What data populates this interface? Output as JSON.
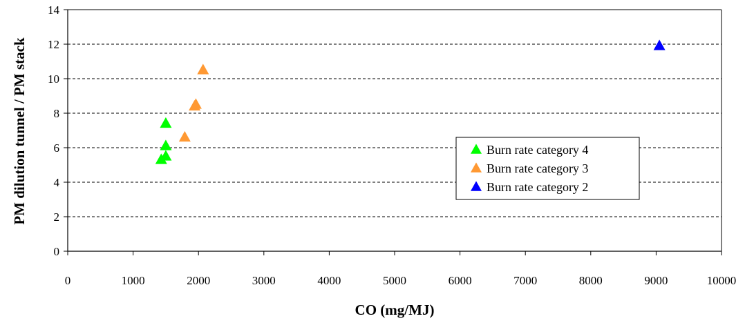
{
  "chart_data": {
    "type": "scatter",
    "title": "",
    "xlabel": "CO (mg/MJ)",
    "ylabel": "PM dilution tunnel / PM stack",
    "xlim": [
      0,
      10000
    ],
    "ylim": [
      0,
      14
    ],
    "x_ticks": [
      "0",
      "1000",
      "2000",
      "3000",
      "4000",
      "5000",
      "6000",
      "7000",
      "8000",
      "9000",
      "10000"
    ],
    "y_ticks": [
      "0",
      "2",
      "4",
      "6",
      "8",
      "10",
      "12",
      "14"
    ],
    "grid": "horizontal dashed",
    "legend_position": "right",
    "marker": "triangle",
    "series": [
      {
        "name": "Burn rate category 4",
        "color": "#00ff00",
        "points": [
          {
            "x": 1500,
            "y": 7.4
          },
          {
            "x": 1500,
            "y": 6.1
          },
          {
            "x": 1500,
            "y": 5.5
          },
          {
            "x": 1430,
            "y": 5.3
          }
        ]
      },
      {
        "name": "Burn rate category 3",
        "color": "#ff9933",
        "points": [
          {
            "x": 2070,
            "y": 10.5
          },
          {
            "x": 1960,
            "y": 8.5
          },
          {
            "x": 1940,
            "y": 8.4
          },
          {
            "x": 1790,
            "y": 6.6
          }
        ]
      },
      {
        "name": "Burn rate category 2",
        "color": "#0000ff",
        "points": [
          {
            "x": 9050,
            "y": 11.9
          }
        ]
      }
    ]
  }
}
